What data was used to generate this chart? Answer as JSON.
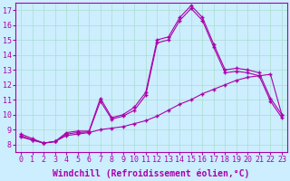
{
  "xlabel": "Windchill (Refroidissement éolien,°C)",
  "ylabel": "",
  "background_color": "#cceeff",
  "grid_color": "#aaddcc",
  "line_color": "#aa00aa",
  "x_ticks": [
    0,
    1,
    2,
    3,
    4,
    5,
    6,
    7,
    8,
    9,
    10,
    11,
    12,
    13,
    14,
    15,
    16,
    17,
    18,
    19,
    20,
    21,
    22,
    23
  ],
  "y_ticks": [
    8,
    9,
    10,
    11,
    12,
    13,
    14,
    15,
    16,
    17
  ],
  "ylim": [
    7.5,
    17.5
  ],
  "xlim": [
    -0.5,
    23.5
  ],
  "series1_x": [
    0,
    1,
    2,
    3,
    4,
    5,
    6,
    7,
    8,
    9,
    10,
    11,
    12,
    13,
    14,
    15,
    16,
    17,
    18,
    19,
    20,
    21,
    22,
    23
  ],
  "series1_y": [
    8.7,
    8.4,
    8.1,
    8.2,
    8.8,
    8.9,
    8.9,
    11.1,
    9.8,
    10.0,
    10.5,
    11.5,
    15.0,
    15.2,
    16.5,
    17.3,
    16.5,
    14.7,
    13.0,
    13.1,
    13.0,
    12.8,
    11.1,
    10.0
  ],
  "series2_x": [
    0,
    1,
    2,
    3,
    4,
    5,
    6,
    7,
    8,
    9,
    10,
    11,
    12,
    13,
    14,
    15,
    16,
    17,
    18,
    19,
    20,
    21,
    22,
    23
  ],
  "series2_y": [
    8.6,
    8.3,
    8.1,
    8.2,
    8.7,
    8.8,
    8.85,
    10.9,
    9.7,
    9.9,
    10.3,
    11.3,
    14.8,
    15.0,
    16.3,
    17.1,
    16.3,
    14.5,
    12.8,
    12.9,
    12.8,
    12.6,
    10.9,
    9.8
  ],
  "series3_x": [
    0,
    1,
    2,
    3,
    4,
    5,
    6,
    7,
    8,
    9,
    10,
    11,
    12,
    13,
    14,
    15,
    16,
    17,
    18,
    19,
    20,
    21,
    22,
    23
  ],
  "series3_y": [
    8.5,
    8.3,
    8.1,
    8.2,
    8.6,
    8.7,
    8.8,
    9.0,
    9.1,
    9.2,
    9.4,
    9.6,
    9.9,
    10.3,
    10.7,
    11.0,
    11.4,
    11.7,
    12.0,
    12.3,
    12.5,
    12.6,
    12.7,
    10.0
  ],
  "xlabel_fontsize": 7,
  "tick_fontsize": 6
}
